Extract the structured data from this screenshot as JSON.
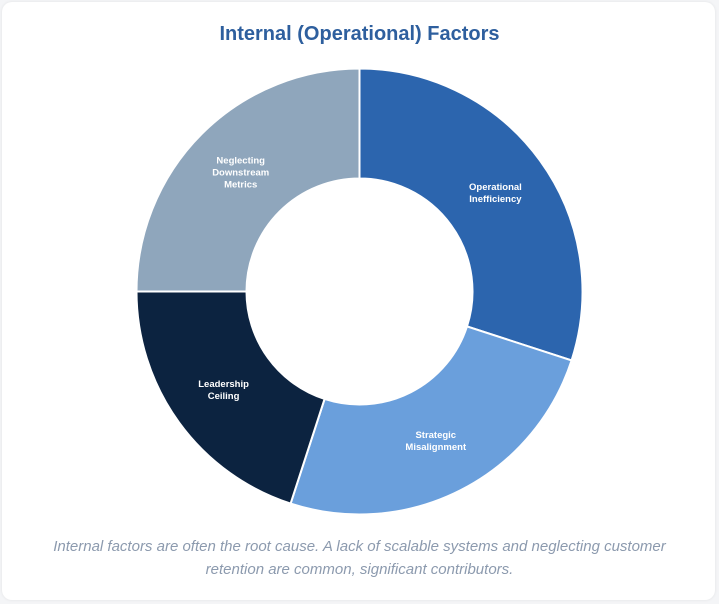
{
  "chart_data": {
    "type": "pie",
    "title": "Internal (Operational) Factors",
    "categories": [
      "Operational Inefficiency",
      "Strategic Misalignment",
      "Leadership Ceiling",
      "Neglecting Downstream Metrics"
    ],
    "label_lines": [
      [
        "Operational",
        "Inefficiency"
      ],
      [
        "Strategic",
        "Misalignment"
      ],
      [
        "Leadership",
        "Ceiling"
      ],
      [
        "Neglecting",
        "Downstream",
        "Metrics"
      ]
    ],
    "values": [
      30,
      25,
      20,
      25
    ],
    "colors": [
      "#2c65ae",
      "#6a9fdc",
      "#0c2340",
      "#8fa6bc"
    ],
    "donut": true,
    "legend": "none"
  },
  "caption": "Internal factors are often the root cause. A lack of scalable systems and neglecting customer retention are common, significant contributors."
}
